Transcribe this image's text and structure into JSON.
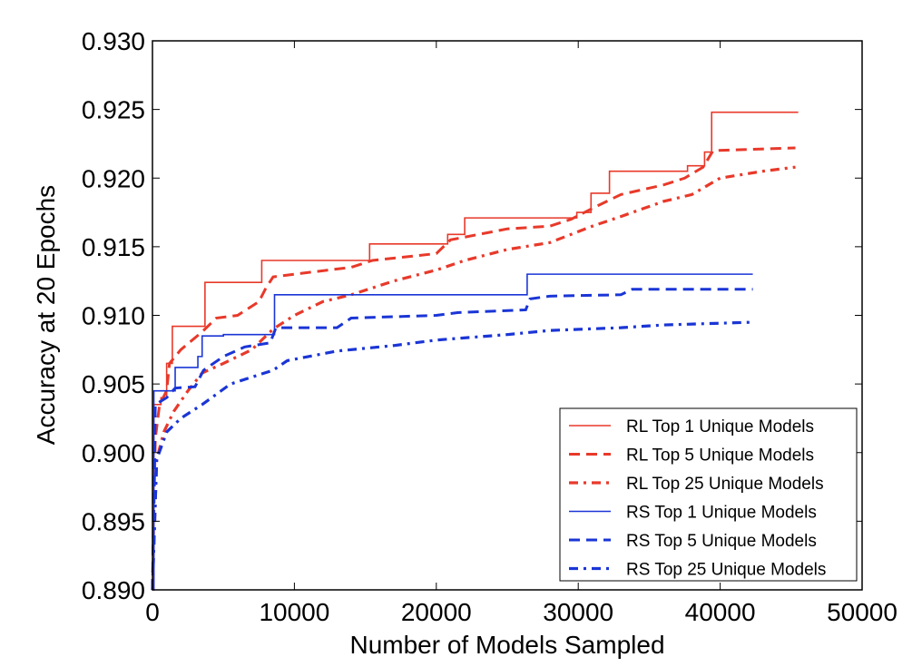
{
  "chart_data": {
    "type": "line",
    "title": "",
    "xlabel": "Number of Models Sampled",
    "ylabel": "Accuracy at 20 Epochs",
    "xlim": [
      0,
      50000
    ],
    "ylim": [
      0.89,
      0.93
    ],
    "xticks": [
      "0",
      "10000",
      "20000",
      "30000",
      "40000",
      "50000"
    ],
    "xtick_values": [
      0,
      10000,
      20000,
      30000,
      40000,
      50000
    ],
    "yticks": [
      "0.890",
      "0.895",
      "0.900",
      "0.905",
      "0.910",
      "0.915",
      "0.920",
      "0.925",
      "0.930"
    ],
    "ytick_values": [
      0.89,
      0.895,
      0.9,
      0.905,
      0.91,
      0.915,
      0.92,
      0.925,
      0.93
    ],
    "grid": false,
    "legend_position": "bottom-right",
    "series": [
      {
        "name": "RL Top 1 Unique Models",
        "color": "#e8392a",
        "style": "solid",
        "step": true,
        "points": [
          [
            0,
            0.89
          ],
          [
            100,
            0.9035
          ],
          [
            600,
            0.904
          ],
          [
            1000,
            0.9065
          ],
          [
            1400,
            0.9092
          ],
          [
            3700,
            0.9124
          ],
          [
            7700,
            0.914
          ],
          [
            15300,
            0.9152
          ],
          [
            20800,
            0.9159
          ],
          [
            22000,
            0.9171
          ],
          [
            29900,
            0.9175
          ],
          [
            30900,
            0.9189
          ],
          [
            32200,
            0.9205
          ],
          [
            37700,
            0.9209
          ],
          [
            38900,
            0.9219
          ],
          [
            39400,
            0.9248
          ],
          [
            45500,
            0.9248
          ]
        ]
      },
      {
        "name": "RL Top 5 Unique Models",
        "color": "#e8392a",
        "style": "dashed",
        "step": false,
        "points": [
          [
            0,
            0.89
          ],
          [
            200,
            0.901
          ],
          [
            500,
            0.9035
          ],
          [
            1000,
            0.9045
          ],
          [
            1200,
            0.9065
          ],
          [
            2000,
            0.9075
          ],
          [
            3500,
            0.9088
          ],
          [
            4500,
            0.9098
          ],
          [
            6000,
            0.91
          ],
          [
            7500,
            0.911
          ],
          [
            8000,
            0.912
          ],
          [
            8500,
            0.9128
          ],
          [
            10000,
            0.913
          ],
          [
            14000,
            0.9135
          ],
          [
            15500,
            0.914
          ],
          [
            20000,
            0.9145
          ],
          [
            21000,
            0.9155
          ],
          [
            22000,
            0.9157
          ],
          [
            25000,
            0.9163
          ],
          [
            28000,
            0.9165
          ],
          [
            29500,
            0.917
          ],
          [
            31000,
            0.9178
          ],
          [
            33000,
            0.9188
          ],
          [
            36000,
            0.9195
          ],
          [
            37500,
            0.92
          ],
          [
            38800,
            0.9208
          ],
          [
            39500,
            0.922
          ],
          [
            45300,
            0.9222
          ]
        ]
      },
      {
        "name": "RL Top 25 Unique Models",
        "color": "#e8392a",
        "style": "dashdot",
        "step": false,
        "points": [
          [
            0,
            0.89
          ],
          [
            300,
            0.8995
          ],
          [
            800,
            0.9015
          ],
          [
            1500,
            0.903
          ],
          [
            2500,
            0.9045
          ],
          [
            3500,
            0.9058
          ],
          [
            5000,
            0.9065
          ],
          [
            7000,
            0.9075
          ],
          [
            8500,
            0.909
          ],
          [
            10000,
            0.91
          ],
          [
            12000,
            0.911
          ],
          [
            14000,
            0.9115
          ],
          [
            17000,
            0.9125
          ],
          [
            20000,
            0.9133
          ],
          [
            22000,
            0.914
          ],
          [
            25000,
            0.9148
          ],
          [
            28000,
            0.9153
          ],
          [
            31000,
            0.9165
          ],
          [
            33000,
            0.9172
          ],
          [
            36000,
            0.9183
          ],
          [
            38000,
            0.9188
          ],
          [
            40000,
            0.92
          ],
          [
            43000,
            0.9205
          ],
          [
            45300,
            0.9208
          ]
        ]
      },
      {
        "name": "RS Top 1 Unique Models",
        "color": "#1a35d6",
        "style": "solid",
        "step": true,
        "points": [
          [
            0,
            0.89
          ],
          [
            100,
            0.9045
          ],
          [
            1600,
            0.9062
          ],
          [
            3200,
            0.907
          ],
          [
            3500,
            0.9085
          ],
          [
            5000,
            0.9086
          ],
          [
            8600,
            0.9115
          ],
          [
            26400,
            0.913
          ],
          [
            42300,
            0.913
          ]
        ]
      },
      {
        "name": "RS Top 5 Unique Models",
        "color": "#1a35d6",
        "style": "dashed",
        "step": false,
        "points": [
          [
            0,
            0.89
          ],
          [
            200,
            0.9035
          ],
          [
            1000,
            0.904
          ],
          [
            1600,
            0.9047
          ],
          [
            3000,
            0.9048
          ],
          [
            3600,
            0.906
          ],
          [
            5000,
            0.907
          ],
          [
            6500,
            0.9077
          ],
          [
            8300,
            0.908
          ],
          [
            8700,
            0.9091
          ],
          [
            13000,
            0.9091
          ],
          [
            14000,
            0.9098
          ],
          [
            20000,
            0.91
          ],
          [
            21500,
            0.9102
          ],
          [
            26300,
            0.9104
          ],
          [
            26600,
            0.9112
          ],
          [
            28000,
            0.9114
          ],
          [
            33000,
            0.9115
          ],
          [
            33800,
            0.9119
          ],
          [
            42300,
            0.9119
          ]
        ]
      },
      {
        "name": "RS Top 25 Unique Models",
        "color": "#1a35d6",
        "style": "dashdot",
        "step": false,
        "points": [
          [
            0,
            0.89
          ],
          [
            300,
            0.8995
          ],
          [
            1000,
            0.9015
          ],
          [
            2000,
            0.9025
          ],
          [
            3500,
            0.9035
          ],
          [
            5500,
            0.905
          ],
          [
            7000,
            0.9055
          ],
          [
            8500,
            0.906
          ],
          [
            9500,
            0.9067
          ],
          [
            13000,
            0.9074
          ],
          [
            17000,
            0.9078
          ],
          [
            20000,
            0.9082
          ],
          [
            25000,
            0.9086
          ],
          [
            28000,
            0.9089
          ],
          [
            33000,
            0.9091
          ],
          [
            36000,
            0.9093
          ],
          [
            42300,
            0.9095
          ]
        ]
      }
    ]
  }
}
